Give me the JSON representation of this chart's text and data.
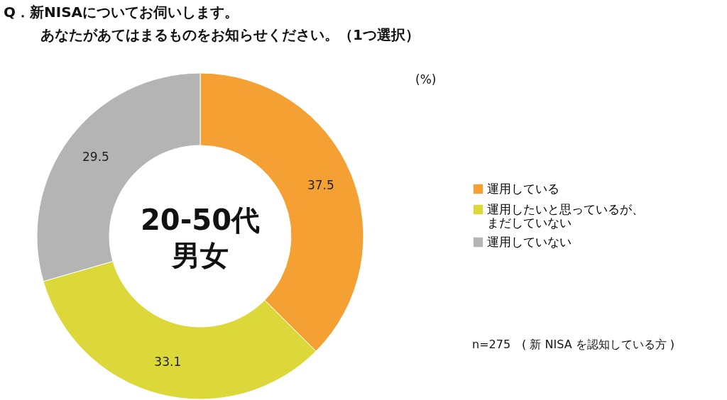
{
  "chart_data": {
    "type": "donut",
    "title": "Q．新NISAについてお伺いします。あなたがあてはまるものをお知らせください。（1つ選択）",
    "categories": [
      "運用している",
      "運用したいと思っているが、まだしていない",
      "運用していない"
    ],
    "values": [
      37.5,
      33.1,
      29.5
    ],
    "colors": [
      "#f4a033",
      "#dcd83a",
      "#b4b4b4"
    ],
    "data_labels": true,
    "legend": "right",
    "annotations": [
      "(%)",
      "20-50代男女",
      "n=275　( 新 NISA を認知している方 )"
    ]
  }
}
